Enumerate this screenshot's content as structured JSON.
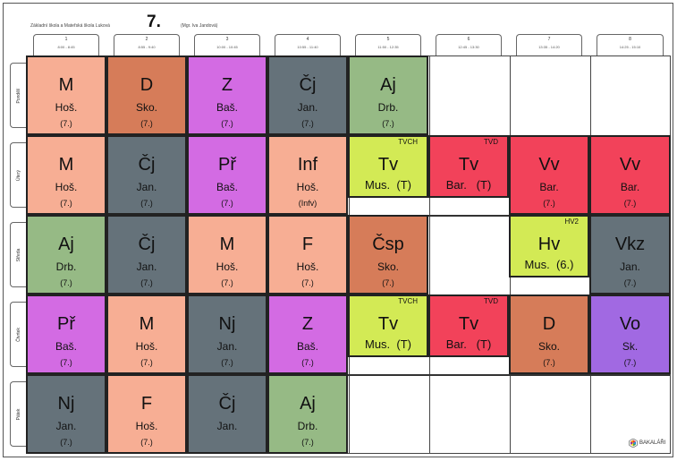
{
  "header": {
    "school": "Základní škola a Mateřská škola Luková",
    "class": "7.",
    "teacher": "(Mgr. Iva Jandová)"
  },
  "periods": [
    {
      "num": "1",
      "time": "8:00 - 8:45"
    },
    {
      "num": "2",
      "time": "8:55 - 9:40"
    },
    {
      "num": "3",
      "time": "10:00 - 10:45"
    },
    {
      "num": "4",
      "time": "10:55 - 11:40"
    },
    {
      "num": "5",
      "time": "11:50 - 12:35"
    },
    {
      "num": "6",
      "time": "12:45 - 13:30"
    },
    {
      "num": "7",
      "time": "13:35 - 14:20"
    },
    {
      "num": "8",
      "time": "14:25 - 15:10"
    }
  ],
  "days": [
    "Pondělí",
    "Úterý",
    "Středa",
    "Čtvrtek",
    "Pátek"
  ],
  "colors": {
    "M": "#f7ae94",
    "F": "#f7ae94",
    "D": "#d67c59",
    "Csp": "#d67c59",
    "Z": "#d36be3",
    "Pr": "#d36be3",
    "Cj": "#65727a",
    "Nj": "#65727a",
    "Vkz": "#65727a",
    "Aj": "#96ba85",
    "Inf": "#f7ae94",
    "Tv": "#d3ea55",
    "TvD": "#f2425a",
    "Vv": "#f2425a",
    "Vo": "#a169e2"
  },
  "lessons": [
    {
      "day": 0,
      "period": 0,
      "kind": "full",
      "subject": "M",
      "teacher": "Hoš.",
      "group": "(7.)",
      "color": "#f7ae94"
    },
    {
      "day": 0,
      "period": 1,
      "kind": "full",
      "subject": "D",
      "teacher": "Sko.",
      "group": "(7.)",
      "color": "#d67c59"
    },
    {
      "day": 0,
      "period": 2,
      "kind": "full",
      "subject": "Z",
      "teacher": "Baš.",
      "group": "(7.)",
      "color": "#d36be3"
    },
    {
      "day": 0,
      "period": 3,
      "kind": "full",
      "subject": "Čj",
      "teacher": "Jan.",
      "group": "(7.)",
      "color": "#65727a"
    },
    {
      "day": 0,
      "period": 4,
      "kind": "full",
      "subject": "Aj",
      "teacher": "Drb.",
      "group": "(7.)",
      "color": "#96ba85"
    },
    {
      "day": 1,
      "period": 0,
      "kind": "full",
      "subject": "M",
      "teacher": "Hoš.",
      "group": "(7.)",
      "color": "#f7ae94"
    },
    {
      "day": 1,
      "period": 1,
      "kind": "full",
      "subject": "Čj",
      "teacher": "Jan.",
      "group": "(7.)",
      "color": "#65727a"
    },
    {
      "day": 1,
      "period": 2,
      "kind": "full",
      "subject": "Př",
      "teacher": "Baš.",
      "group": "(7.)",
      "color": "#d36be3"
    },
    {
      "day": 1,
      "period": 3,
      "kind": "full",
      "subject": "Inf",
      "teacher": "Hoš.",
      "group": "(Infv)",
      "color": "#f7ae94"
    },
    {
      "day": 1,
      "period": 4,
      "kind": "half",
      "subject": "Tv",
      "line2": "Mus.  (T)",
      "room": "TVCH",
      "color": "#d3ea55"
    },
    {
      "day": 1,
      "period": 5,
      "kind": "half",
      "subject": "Tv",
      "line2": "Bar.   (T)",
      "room": "TVD",
      "color": "#f2425a"
    },
    {
      "day": 1,
      "period": 6,
      "kind": "full",
      "subject": "Vv",
      "teacher": "Bar.",
      "group": "(7.)",
      "color": "#f2425a"
    },
    {
      "day": 1,
      "period": 7,
      "kind": "full",
      "subject": "Vv",
      "teacher": "Bar.",
      "group": "(7.)",
      "color": "#f2425a"
    },
    {
      "day": 2,
      "period": 0,
      "kind": "full",
      "subject": "Aj",
      "teacher": "Drb.",
      "group": "(7.)",
      "color": "#96ba85"
    },
    {
      "day": 2,
      "period": 1,
      "kind": "full",
      "subject": "Čj",
      "teacher": "Jan.",
      "group": "(7.)",
      "color": "#65727a"
    },
    {
      "day": 2,
      "period": 2,
      "kind": "full",
      "subject": "M",
      "teacher": "Hoš.",
      "group": "(7.)",
      "color": "#f7ae94"
    },
    {
      "day": 2,
      "period": 3,
      "kind": "full",
      "subject": "F",
      "teacher": "Hoš.",
      "group": "(7.)",
      "color": "#f7ae94"
    },
    {
      "day": 2,
      "period": 4,
      "kind": "full",
      "subject": "Čsp",
      "teacher": "Sko.",
      "group": "(7.)",
      "color": "#d67c59"
    },
    {
      "day": 2,
      "period": 6,
      "kind": "half",
      "subject": "Hv",
      "line2": "Mus.  (6.)",
      "room": "HV2",
      "color": "#d3ea55"
    },
    {
      "day": 2,
      "period": 7,
      "kind": "full",
      "subject": "Vkz",
      "teacher": "Jan.",
      "group": "(7.)",
      "color": "#65727a"
    },
    {
      "day": 3,
      "period": 0,
      "kind": "full",
      "subject": "Př",
      "teacher": "Baš.",
      "group": "(7.)",
      "color": "#d36be3"
    },
    {
      "day": 3,
      "period": 1,
      "kind": "full",
      "subject": "M",
      "teacher": "Hoš.",
      "group": "(7.)",
      "color": "#f7ae94"
    },
    {
      "day": 3,
      "period": 2,
      "kind": "full",
      "subject": "Nj",
      "teacher": "Jan.",
      "group": "(7.)",
      "color": "#65727a"
    },
    {
      "day": 3,
      "period": 3,
      "kind": "full",
      "subject": "Z",
      "teacher": "Baš.",
      "group": "(7.)",
      "color": "#d36be3"
    },
    {
      "day": 3,
      "period": 4,
      "kind": "half",
      "subject": "Tv",
      "line2": "Mus.  (T)",
      "room": "TVCH",
      "color": "#d3ea55"
    },
    {
      "day": 3,
      "period": 5,
      "kind": "half",
      "subject": "Tv",
      "line2": "Bar.   (T)",
      "room": "TVD",
      "color": "#f2425a"
    },
    {
      "day": 3,
      "period": 6,
      "kind": "full",
      "subject": "D",
      "teacher": "Sko.",
      "group": "(7.)",
      "color": "#d67c59"
    },
    {
      "day": 3,
      "period": 7,
      "kind": "full",
      "subject": "Vo",
      "teacher": "Sk.",
      "group": "(7.)",
      "color": "#a169e2"
    },
    {
      "day": 4,
      "period": 0,
      "kind": "full",
      "subject": "Nj",
      "teacher": "Jan.",
      "group": "(7.)",
      "color": "#65727a"
    },
    {
      "day": 4,
      "period": 1,
      "kind": "full",
      "subject": "F",
      "teacher": "Hoš.",
      "group": "(7.)",
      "color": "#f7ae94"
    },
    {
      "day": 4,
      "period": 2,
      "kind": "full",
      "subject": "Čj",
      "teacher": "Jan.",
      "group": "",
      "color": "#65727a"
    },
    {
      "day": 4,
      "period": 3,
      "kind": "full",
      "subject": "Aj",
      "teacher": "Drb.",
      "group": "(7.)",
      "color": "#96ba85"
    }
  ],
  "logo": {
    "text": "BAKALÁŘI",
    "icon": "bakalari-logo-icon"
  }
}
